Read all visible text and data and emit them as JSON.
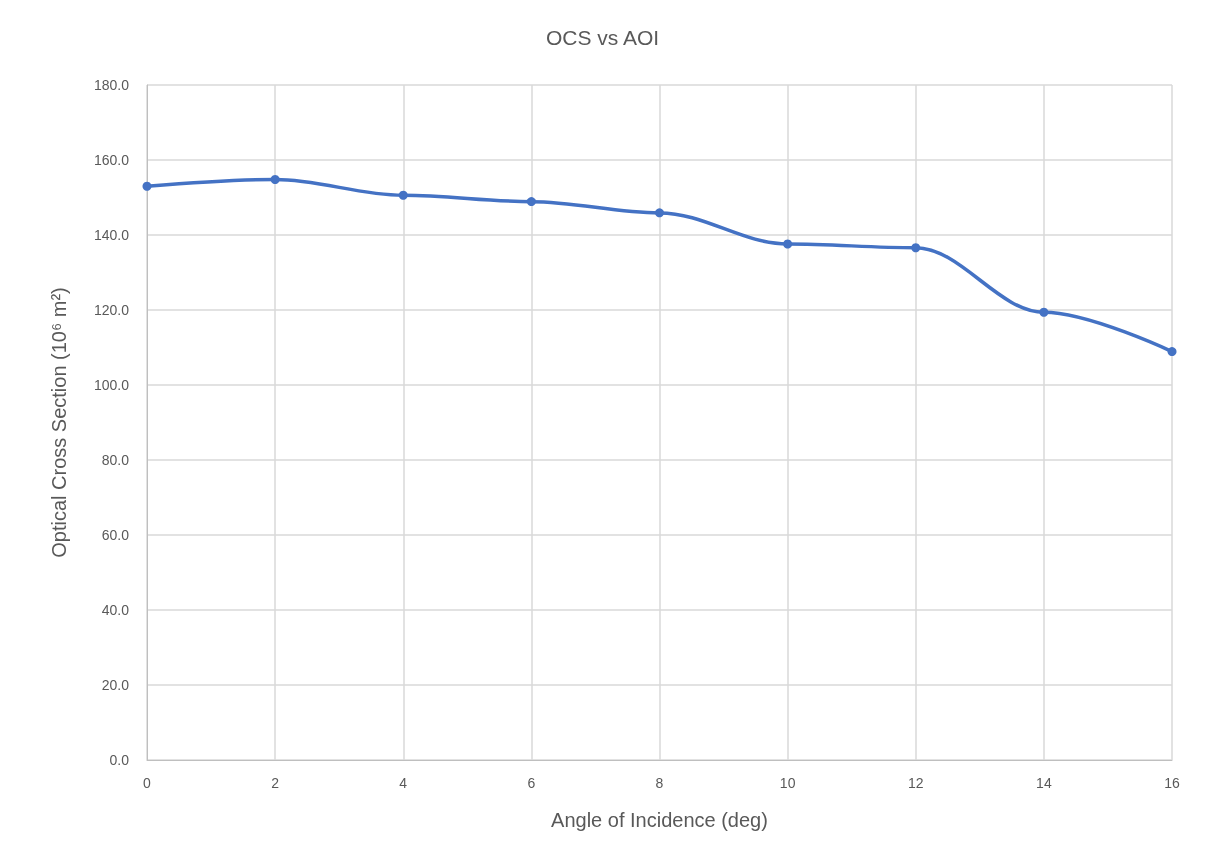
{
  "chart_data": {
    "type": "line",
    "title": "OCS vs AOI",
    "xlabel": "Angle of Incidence (deg)",
    "ylabel": "Optical Cross Section (10⁶ m²)",
    "x": [
      0,
      2,
      4,
      6,
      8,
      10,
      12,
      14,
      16
    ],
    "series": [
      {
        "color": "#4472c4",
        "values": [
          153.0,
          154.8,
          150.6,
          148.9,
          145.9,
          137.6,
          136.6,
          119.4,
          108.9
        ]
      }
    ],
    "xlim": [
      0,
      16
    ],
    "xticks": [
      0,
      2,
      4,
      6,
      8,
      10,
      12,
      14,
      16
    ],
    "ylim": [
      0,
      180
    ],
    "yticks": [
      {
        "value": 0,
        "label": "0.0"
      },
      {
        "value": 20,
        "label": "20.0"
      },
      {
        "value": 40,
        "label": "40.0"
      },
      {
        "value": 60,
        "label": "60.0"
      },
      {
        "value": 80,
        "label": "80.0"
      },
      {
        "value": 100,
        "label": "100.0"
      },
      {
        "value": 120,
        "label": "120.0"
      },
      {
        "value": 140,
        "label": "140.0"
      },
      {
        "value": 160,
        "label": "160.0"
      },
      {
        "value": 180,
        "label": "180.0"
      }
    ],
    "grid": true,
    "marker": "circle",
    "line_style": "solid"
  }
}
